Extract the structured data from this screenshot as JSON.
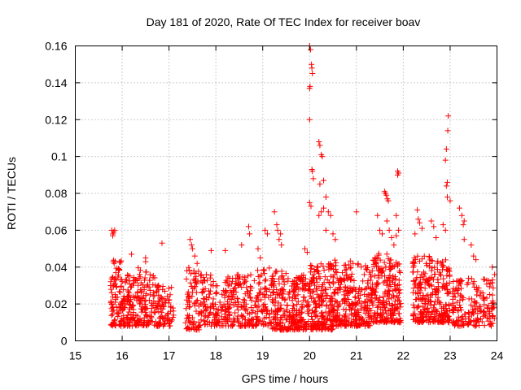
{
  "chart_data": {
    "type": "scatter",
    "title": "Day 181 of 2020, Rate Of TEC Index for receiver boav",
    "xlabel": "GPS time / hours",
    "ylabel": "ROTI / TECUs",
    "xlim": [
      15,
      24
    ],
    "ylim": [
      0,
      0.16
    ],
    "xticks": [
      "15",
      "16",
      "17",
      "18",
      "19",
      "20",
      "21",
      "22",
      "23",
      "24"
    ],
    "yticks": [
      "0",
      "0.02",
      "0.04",
      "0.06",
      "0.08",
      "0.1",
      "0.12",
      "0.14",
      "0.16"
    ],
    "grid": true,
    "marker": "+",
    "color": "#ff0000",
    "series": [
      {
        "name": "ROTI",
        "note": "dense clusters approximated as ranges: [x_start, x_end, y_low, y_high, count]",
        "clusters": [
          [
            15.75,
            16.0,
            0.008,
            0.044,
            90
          ],
          [
            16.0,
            16.3,
            0.008,
            0.036,
            100
          ],
          [
            16.3,
            16.55,
            0.008,
            0.04,
            80
          ],
          [
            16.55,
            16.8,
            0.008,
            0.036,
            60
          ],
          [
            16.8,
            17.1,
            0.008,
            0.03,
            60
          ],
          [
            17.35,
            17.65,
            0.006,
            0.04,
            80
          ],
          [
            17.65,
            18.0,
            0.008,
            0.036,
            80
          ],
          [
            18.0,
            18.4,
            0.008,
            0.036,
            100
          ],
          [
            18.4,
            18.8,
            0.008,
            0.036,
            100
          ],
          [
            18.8,
            19.2,
            0.008,
            0.04,
            90
          ],
          [
            19.2,
            19.6,
            0.006,
            0.038,
            130
          ],
          [
            19.6,
            20.0,
            0.006,
            0.036,
            150
          ],
          [
            20.0,
            20.5,
            0.006,
            0.042,
            200
          ],
          [
            20.5,
            20.9,
            0.008,
            0.044,
            150
          ],
          [
            20.9,
            21.3,
            0.008,
            0.042,
            130
          ],
          [
            21.3,
            21.7,
            0.01,
            0.048,
            150
          ],
          [
            21.7,
            21.95,
            0.01,
            0.044,
            100
          ],
          [
            22.2,
            22.6,
            0.01,
            0.046,
            150
          ],
          [
            22.6,
            23.0,
            0.01,
            0.044,
            150
          ],
          [
            23.05,
            23.4,
            0.008,
            0.034,
            80
          ],
          [
            23.4,
            23.95,
            0.008,
            0.034,
            110
          ]
        ],
        "points": [
          [
            15.78,
            0.06
          ],
          [
            15.8,
            0.058
          ],
          [
            15.82,
            0.059
          ],
          [
            15.8,
            0.057
          ],
          [
            15.84,
            0.06
          ],
          [
            16.2,
            0.047
          ],
          [
            16.5,
            0.045
          ],
          [
            16.5,
            0.043
          ],
          [
            16.85,
            0.053
          ],
          [
            17.45,
            0.055
          ],
          [
            17.48,
            0.052
          ],
          [
            17.5,
            0.05
          ],
          [
            17.55,
            0.046
          ],
          [
            17.6,
            0.042
          ],
          [
            17.9,
            0.049
          ],
          [
            18.2,
            0.049
          ],
          [
            18.55,
            0.052
          ],
          [
            18.7,
            0.062
          ],
          [
            18.72,
            0.058
          ],
          [
            18.9,
            0.05
          ],
          [
            18.95,
            0.045
          ],
          [
            19.05,
            0.06
          ],
          [
            19.1,
            0.058
          ],
          [
            19.25,
            0.07
          ],
          [
            19.3,
            0.063
          ],
          [
            19.32,
            0.06
          ],
          [
            19.35,
            0.055
          ],
          [
            19.4,
            0.052
          ],
          [
            19.38,
            0.058
          ],
          [
            19.9,
            0.05
          ],
          [
            19.95,
            0.048
          ],
          [
            20.0,
            0.16
          ],
          [
            20.02,
            0.158
          ],
          [
            20.05,
            0.148
          ],
          [
            20.06,
            0.145
          ],
          [
            20.04,
            0.15
          ],
          [
            20.0,
            0.137
          ],
          [
            20.01,
            0.138
          ],
          [
            20.0,
            0.12
          ],
          [
            20.05,
            0.093
          ],
          [
            20.08,
            0.088
          ],
          [
            20.06,
            0.092
          ],
          [
            20.0,
            0.075
          ],
          [
            20.03,
            0.073
          ],
          [
            20.2,
            0.108
          ],
          [
            20.22,
            0.106
          ],
          [
            20.25,
            0.101
          ],
          [
            20.27,
            0.1
          ],
          [
            20.3,
            0.087
          ],
          [
            20.22,
            0.085
          ],
          [
            20.25,
            0.07
          ],
          [
            20.2,
            0.068
          ],
          [
            20.35,
            0.078
          ],
          [
            20.3,
            0.072
          ],
          [
            20.4,
            0.07
          ],
          [
            20.45,
            0.068
          ],
          [
            20.35,
            0.06
          ],
          [
            20.5,
            0.058
          ],
          [
            20.55,
            0.055
          ],
          [
            21.0,
            0.07
          ],
          [
            21.45,
            0.068
          ],
          [
            21.5,
            0.06
          ],
          [
            21.55,
            0.058
          ],
          [
            21.6,
            0.081
          ],
          [
            21.62,
            0.08
          ],
          [
            21.64,
            0.079
          ],
          [
            21.66,
            0.077
          ],
          [
            21.68,
            0.076
          ],
          [
            21.65,
            0.065
          ],
          [
            21.7,
            0.06
          ],
          [
            21.75,
            0.056
          ],
          [
            21.8,
            0.052
          ],
          [
            21.85,
            0.068
          ],
          [
            21.88,
            0.092
          ],
          [
            21.9,
            0.091
          ],
          [
            21.88,
            0.09
          ],
          [
            21.9,
            0.06
          ],
          [
            21.85,
            0.057
          ],
          [
            22.3,
            0.071
          ],
          [
            22.32,
            0.066
          ],
          [
            22.35,
            0.064
          ],
          [
            22.4,
            0.061
          ],
          [
            22.25,
            0.058
          ],
          [
            22.6,
            0.065
          ],
          [
            22.65,
            0.062
          ],
          [
            22.7,
            0.056
          ],
          [
            22.85,
            0.063
          ],
          [
            22.9,
            0.06
          ],
          [
            22.92,
            0.084
          ],
          [
            22.94,
            0.086
          ],
          [
            22.9,
            0.098
          ],
          [
            22.92,
            0.104
          ],
          [
            22.95,
            0.114
          ],
          [
            22.96,
            0.122
          ],
          [
            22.94,
            0.078
          ],
          [
            23.0,
            0.076
          ],
          [
            23.2,
            0.072
          ],
          [
            23.25,
            0.068
          ],
          [
            23.3,
            0.065
          ],
          [
            23.28,
            0.063
          ],
          [
            23.3,
            0.055
          ],
          [
            23.45,
            0.052
          ],
          [
            23.5,
            0.046
          ],
          [
            23.55,
            0.044
          ],
          [
            23.9,
            0.04
          ],
          [
            23.95,
            0.036
          ]
        ]
      }
    ]
  }
}
